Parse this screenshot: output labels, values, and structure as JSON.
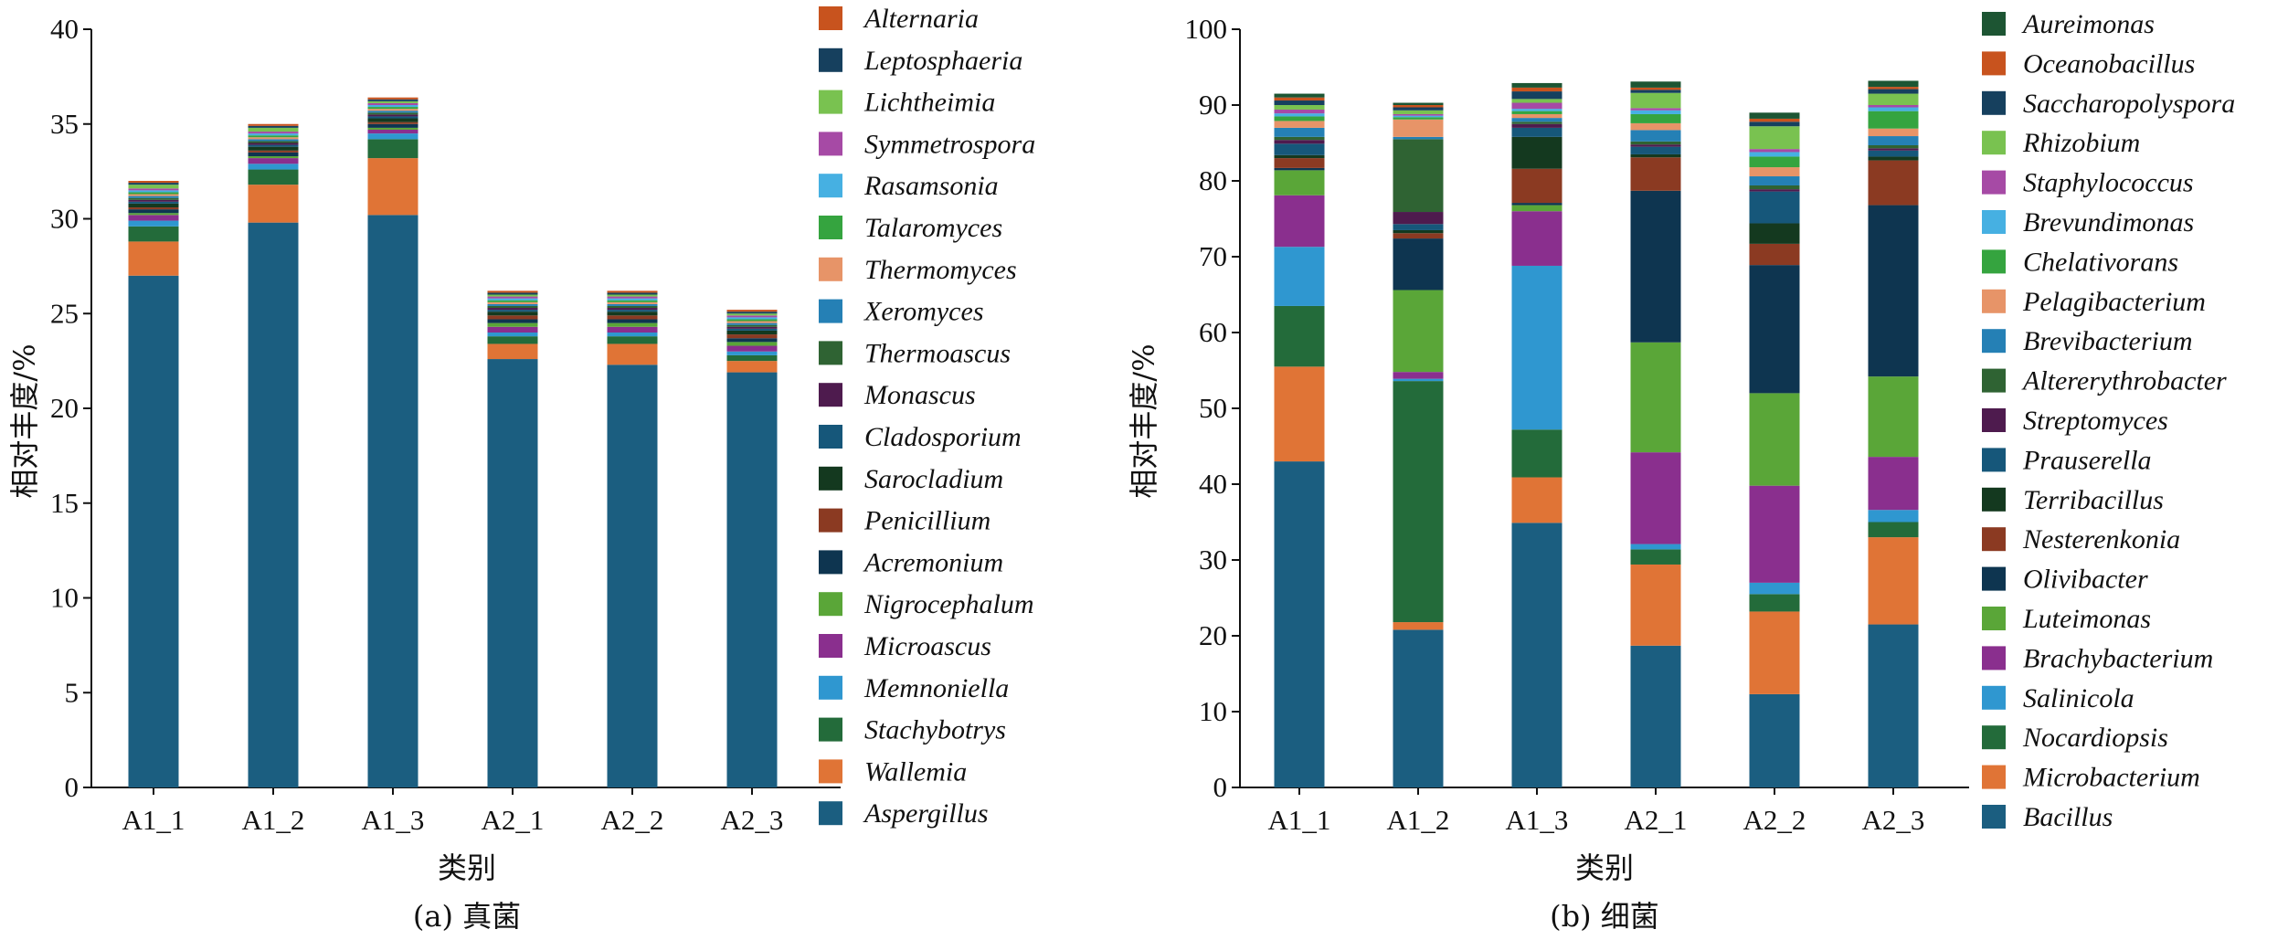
{
  "chart_data": [
    {
      "type": "bar",
      "stacked": true,
      "caption": "(a) 真菌",
      "xlabel": "类别",
      "ylabel": "相对丰度/%",
      "ylim": [
        0,
        40
      ],
      "yticks": [
        0,
        5,
        10,
        15,
        20,
        25,
        30,
        35,
        40
      ],
      "categories": [
        "A1_1",
        "A1_2",
        "A1_3",
        "A2_1",
        "A2_2",
        "A2_3"
      ],
      "legend_position": "right",
      "series": [
        {
          "name": "Aspergillus",
          "color": "#1b5e80",
          "values": [
            27.0,
            29.8,
            30.2,
            22.6,
            22.3,
            21.9
          ]
        },
        {
          "name": "Wallemia",
          "color": "#e07436",
          "values": [
            1.8,
            2.0,
            3.0,
            0.8,
            1.1,
            0.6
          ]
        },
        {
          "name": "Stachybotrys",
          "color": "#236b3a",
          "values": [
            0.8,
            0.8,
            1.0,
            0.4,
            0.4,
            0.3
          ]
        },
        {
          "name": "Memnoniella",
          "color": "#2f97d0",
          "values": [
            0.3,
            0.3,
            0.3,
            0.2,
            0.2,
            0.2
          ]
        },
        {
          "name": "Microascus",
          "color": "#8a2f8e",
          "values": [
            0.3,
            0.3,
            0.2,
            0.3,
            0.3,
            0.3
          ]
        },
        {
          "name": "Nigrocephalum",
          "color": "#5aa638",
          "values": [
            0.1,
            0.1,
            0.1,
            0.2,
            0.2,
            0.2
          ]
        },
        {
          "name": "Acremonium",
          "color": "#0e3550",
          "values": [
            0.2,
            0.2,
            0.2,
            0.2,
            0.2,
            0.2
          ]
        },
        {
          "name": "Penicillium",
          "color": "#8b3a22",
          "values": [
            0.1,
            0.1,
            0.1,
            0.2,
            0.2,
            0.2
          ]
        },
        {
          "name": "Sarocladium",
          "color": "#14391f",
          "values": [
            0.2,
            0.2,
            0.2,
            0.2,
            0.2,
            0.2
          ]
        },
        {
          "name": "Cladosporium",
          "color": "#16577a",
          "values": [
            0.1,
            0.1,
            0.1,
            0.1,
            0.1,
            0.1
          ]
        },
        {
          "name": "Monascus",
          "color": "#4e1b4e",
          "values": [
            0.1,
            0.1,
            0.1,
            0.1,
            0.1,
            0.1
          ]
        },
        {
          "name": "Thermoascus",
          "color": "#2f6333",
          "values": [
            0.1,
            0.1,
            0.1,
            0.1,
            0.1,
            0.1
          ]
        },
        {
          "name": "Xeromyces",
          "color": "#2580b5",
          "values": [
            0.1,
            0.1,
            0.1,
            0.1,
            0.1,
            0.1
          ]
        },
        {
          "name": "Thermomyces",
          "color": "#e79468",
          "values": [
            0.1,
            0.1,
            0.1,
            0.1,
            0.1,
            0.1
          ]
        },
        {
          "name": "Talaromyces",
          "color": "#35a43f",
          "values": [
            0.1,
            0.1,
            0.1,
            0.1,
            0.1,
            0.1
          ]
        },
        {
          "name": "Rasamsonia",
          "color": "#46b0e2",
          "values": [
            0.1,
            0.1,
            0.1,
            0.1,
            0.1,
            0.1
          ]
        },
        {
          "name": "Symmetrospora",
          "color": "#a64aa5",
          "values": [
            0.1,
            0.1,
            0.1,
            0.1,
            0.1,
            0.1
          ]
        },
        {
          "name": "Lichtheimia",
          "color": "#79c250",
          "values": [
            0.2,
            0.2,
            0.1,
            0.1,
            0.1,
            0.1
          ]
        },
        {
          "name": "Leptosphaeria",
          "color": "#16405e",
          "values": [
            0.1,
            0.1,
            0.1,
            0.1,
            0.1,
            0.1
          ]
        },
        {
          "name": "Alternaria",
          "color": "#c8531e",
          "values": [
            0.1,
            0.1,
            0.1,
            0.1,
            0.1,
            0.1
          ]
        }
      ]
    },
    {
      "type": "bar",
      "stacked": true,
      "caption": "(b) 细菌",
      "xlabel": "类别",
      "ylabel": "相对丰度/%",
      "ylim": [
        0,
        100
      ],
      "yticks": [
        0,
        10,
        20,
        30,
        40,
        50,
        60,
        70,
        80,
        90,
        100
      ],
      "categories": [
        "A1_1",
        "A1_2",
        "A1_3",
        "A2_1",
        "A2_2",
        "A2_3"
      ],
      "legend_position": "right",
      "series": [
        {
          "name": "Bacillus",
          "color": "#1b5e80",
          "values": [
            43.0,
            20.8,
            34.9,
            18.7,
            12.3,
            21.5
          ]
        },
        {
          "name": "Microbacterium",
          "color": "#e07436",
          "values": [
            12.5,
            1.0,
            6.0,
            10.7,
            10.9,
            11.5
          ]
        },
        {
          "name": "Nocardiopsis",
          "color": "#236b3a",
          "values": [
            8.0,
            31.8,
            6.3,
            2.0,
            2.3,
            2.0
          ]
        },
        {
          "name": "Salinicola",
          "color": "#2f97d0",
          "values": [
            7.8,
            0.3,
            21.6,
            0.7,
            1.5,
            1.6
          ]
        },
        {
          "name": "Brachybacterium",
          "color": "#8a2f8e",
          "values": [
            6.8,
            0.9,
            7.2,
            12.1,
            12.8,
            7.0
          ]
        },
        {
          "name": "Luteimonas",
          "color": "#5aa638",
          "values": [
            3.3,
            10.8,
            0.8,
            14.5,
            12.2,
            10.6
          ]
        },
        {
          "name": "Olivibacter",
          "color": "#0e3550",
          "values": [
            0.3,
            6.8,
            0.3,
            20.0,
            16.9,
            22.6
          ]
        },
        {
          "name": "Nesterenkonia",
          "color": "#8b3a22",
          "values": [
            1.3,
            0.7,
            4.5,
            4.4,
            2.8,
            5.9
          ]
        },
        {
          "name": "Terribacillus",
          "color": "#14391f",
          "values": [
            0.4,
            0.4,
            4.2,
            0.4,
            2.7,
            0.5
          ]
        },
        {
          "name": "Prauserella",
          "color": "#16577a",
          "values": [
            1.5,
            0.8,
            1.2,
            1.0,
            4.2,
            0.8
          ]
        },
        {
          "name": "Streptomyces",
          "color": "#4e1b4e",
          "values": [
            0.5,
            1.6,
            0.5,
            0.3,
            0.3,
            0.3
          ]
        },
        {
          "name": "Altererythrobacter",
          "color": "#2f6333",
          "values": [
            0.4,
            9.6,
            0.3,
            0.4,
            0.5,
            0.4
          ]
        },
        {
          "name": "Brevibacterium",
          "color": "#2580b5",
          "values": [
            1.2,
            0.3,
            0.5,
            1.5,
            1.2,
            1.2
          ]
        },
        {
          "name": "Pelagibacterium",
          "color": "#e79468",
          "values": [
            0.9,
            2.3,
            0.5,
            0.9,
            1.2,
            1.0
          ]
        },
        {
          "name": "Chelativorans",
          "color": "#35a43f",
          "values": [
            0.6,
            0.3,
            0.4,
            1.2,
            1.4,
            2.3
          ]
        },
        {
          "name": "Brevundimonas",
          "color": "#46b0e2",
          "values": [
            0.4,
            0.2,
            0.3,
            0.5,
            0.6,
            0.5
          ]
        },
        {
          "name": "Staphylococcus",
          "color": "#a64aa5",
          "values": [
            0.5,
            0.2,
            0.8,
            0.3,
            0.4,
            0.3
          ]
        },
        {
          "name": "Rhizobium",
          "color": "#79c250",
          "values": [
            0.6,
            0.5,
            0.5,
            2.0,
            3.0,
            1.5
          ]
        },
        {
          "name": "Saccharopolyspora",
          "color": "#16405e",
          "values": [
            0.6,
            0.4,
            1.0,
            0.4,
            0.6,
            0.6
          ]
        },
        {
          "name": "Oceanobacillus",
          "color": "#c8531e",
          "values": [
            0.4,
            0.3,
            0.5,
            0.3,
            0.4,
            0.3
          ]
        },
        {
          "name": "Aureimonas",
          "color": "#1d5533",
          "values": [
            0.5,
            0.3,
            0.6,
            0.8,
            0.8,
            0.8
          ]
        }
      ]
    }
  ]
}
